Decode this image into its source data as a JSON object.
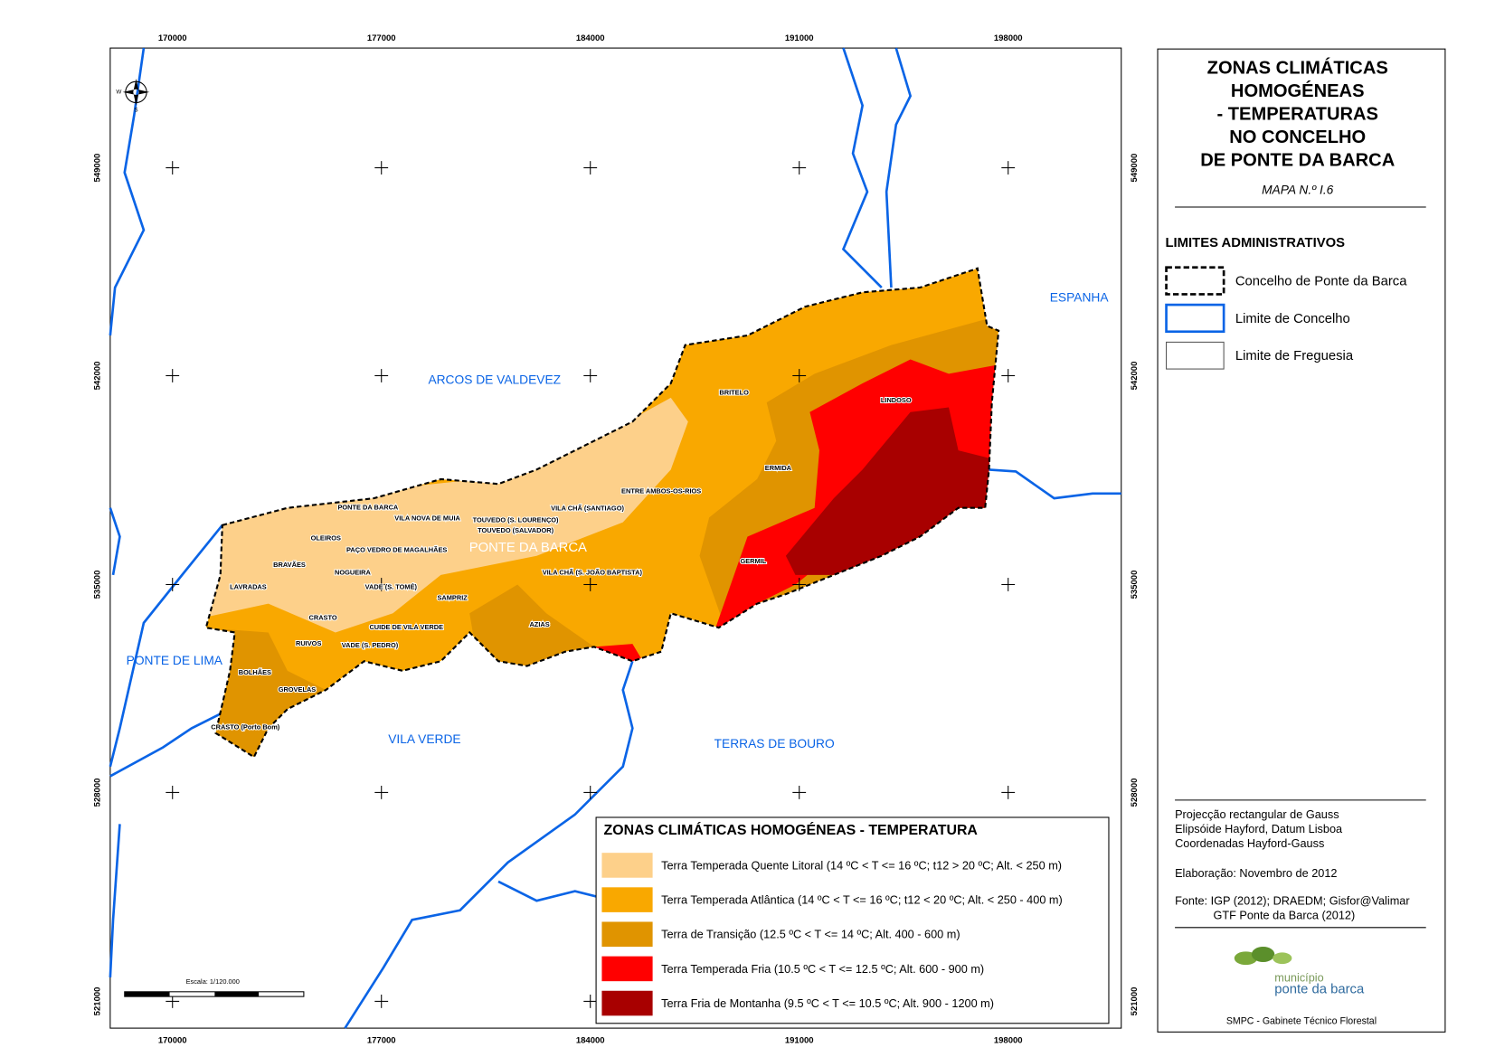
{
  "map": {
    "x_coords": [
      "170000",
      "177000",
      "184000",
      "191000",
      "198000"
    ],
    "y_coords": [
      "549000",
      "542000",
      "535000",
      "528000",
      "521000"
    ],
    "compass": [
      "W",
      "S"
    ],
    "regions": [
      "ARCOS DE VALDEVEZ",
      "ESPANHA",
      "PONTE DE LIMA",
      "VILA VERDE",
      "TERRAS DE BOURO",
      "PONTE DA BARCA"
    ],
    "parishes": [
      "PONTE DA BARCA",
      "VILA NOVA DE MUIA",
      "TOUVEDO (S. LOURENÇO)",
      "TOUVEDO (SALVADOR)",
      "VILA CHÃ (SANTIAGO)",
      "ENTRE AMBOS-OS-RIOS",
      "BRITELO",
      "LINDOSO",
      "ERMIDA",
      "GERMIL",
      "OLEIROS",
      "PAÇO VEDRO DE MAGALHÃES",
      "BRAVÃES",
      "NOGUEIRA",
      "VADE (S. TOMÉ)",
      "SAMPRIZ",
      "VILA CHÃ (S. JOÃO BAPTISTA)",
      "LAVRADAS",
      "CRASTO",
      "CUIDE DE VILA VERDE",
      "AZIAS",
      "RUIVOS",
      "VADE (S. PEDRO)",
      "BOLHÃES",
      "GROVELAS",
      "CRASTO (Porto Bom)"
    ],
    "scale": "Escala: 1/120.000"
  },
  "zones_legend": {
    "title": "ZONAS CLIMÁTICAS HOMOGÉNEAS - TEMPERATURA",
    "items": [
      {
        "label": "Terra Temperada Quente Litoral (14 ºC < T <= 16 ºC; t12 > 20 ºC; Alt. < 250 m)",
        "color": "#fdd08a"
      },
      {
        "label": "Terra Temperada Atlântica (14 ºC < T <= 16 ºC; t12 < 20 ºC; Alt. < 250 - 400 m)",
        "color": "#f9a800"
      },
      {
        "label": "Terra de Transição (12.5 ºC < T <= 14 ºC; Alt. 400 - 600 m)",
        "color": "#e09400"
      },
      {
        "label": "Terra Temperada Fria (10.5 ºC < T <= 12.5 ºC; Alt. 600 - 900 m)",
        "color": "#ff0000"
      },
      {
        "label": "Terra Fria de Montanha (9.5 ºC < T <= 10.5 ºC; Alt. 900 - 1200 m)",
        "color": "#a80000"
      }
    ]
  },
  "panel": {
    "title": [
      "ZONAS CLIMÁTICAS",
      "HOMOGÉNEAS",
      "- TEMPERATURAS",
      "NO CONCELHO",
      "DE PONTE DA BARCA"
    ],
    "map_number": "MAPA N.º I.6",
    "admin_title": "LIMITES ADMINISTRATIVOS",
    "admin_items": [
      "Concelho de Ponte da Barca",
      "Limite de Concelho",
      "Limite de Freguesia"
    ],
    "notes": [
      "Projecção rectangular de Gauss",
      "Elipsóide Hayford, Datum Lisboa",
      "Coordenadas Hayford-Gauss",
      "Elaboração: Novembro de 2012",
      "Fonte: IGP (2012); DRAEDM; Gisfor@Valimar",
      "GTF Ponte da Barca (2012)"
    ],
    "logo": [
      "município",
      "ponte da barca"
    ],
    "footer": "SMPC - Gabinete Técnico Florestal"
  }
}
